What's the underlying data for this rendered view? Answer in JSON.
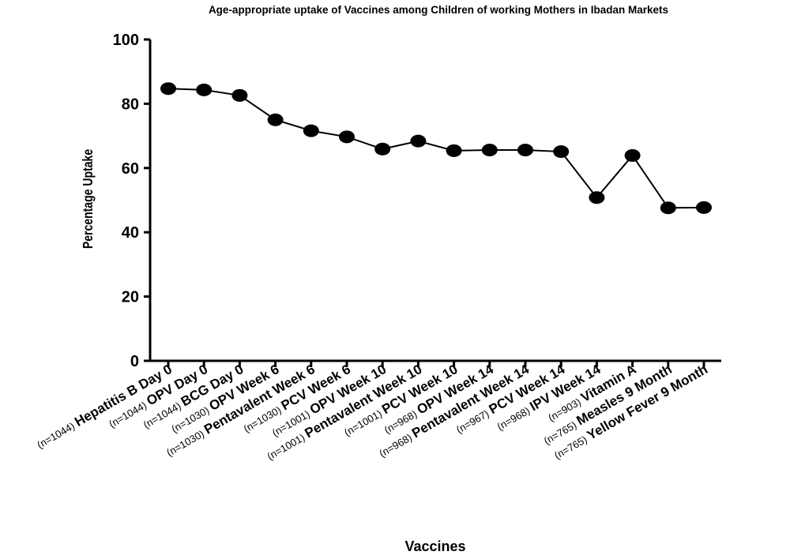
{
  "chart_data": {
    "type": "line",
    "title": "Age-appropriate uptake of Vaccines among Children of working Mothers in Ibadan Markets",
    "xlabel": "Vaccines",
    "ylabel": "Percentage Uptake",
    "ylim": [
      0,
      100
    ],
    "yticks": [
      "0",
      "20",
      "40",
      "60",
      "80",
      "100"
    ],
    "grid": false,
    "categories": [
      {
        "n": "(n=1044)",
        "name": "Hepatitis B Day 0"
      },
      {
        "n": "(n=1044)",
        "name": "OPV Day 0"
      },
      {
        "n": "(n=1044)",
        "name": "BCG Day 0"
      },
      {
        "n": "(n=1030)",
        "name": "OPV Week 6"
      },
      {
        "n": "(n=1030)",
        "name": "Pentavalent Week 6"
      },
      {
        "n": "(n=1030)",
        "name": "PCV Week 6"
      },
      {
        "n": "(n=1001)",
        "name": "OPV Week 10"
      },
      {
        "n": "(n=1001)",
        "name": "Pentavalent Week 10"
      },
      {
        "n": "(n=1001)",
        "name": "PCV Week 10"
      },
      {
        "n": "(n=968)",
        "name": "OPV Week 14"
      },
      {
        "n": "(n=968)",
        "name": "Pentavalent Week 14"
      },
      {
        "n": "(n=967)",
        "name": "PCV Week 14"
      },
      {
        "n": "(n=968)",
        "name": "IPV Week 14"
      },
      {
        "n": "(n=903)",
        "name": "Vitamin A"
      },
      {
        "n": "(n=765)",
        "name": "Measles 9 Month"
      },
      {
        "n": "(n=765)",
        "name": "Yellow Fever 9 Month"
      }
    ],
    "values": [
      84.7,
      84.3,
      82.6,
      75.0,
      71.6,
      69.7,
      65.9,
      68.4,
      65.4,
      65.6,
      65.6,
      65.1,
      50.8,
      63.9,
      47.6,
      47.7
    ]
  }
}
